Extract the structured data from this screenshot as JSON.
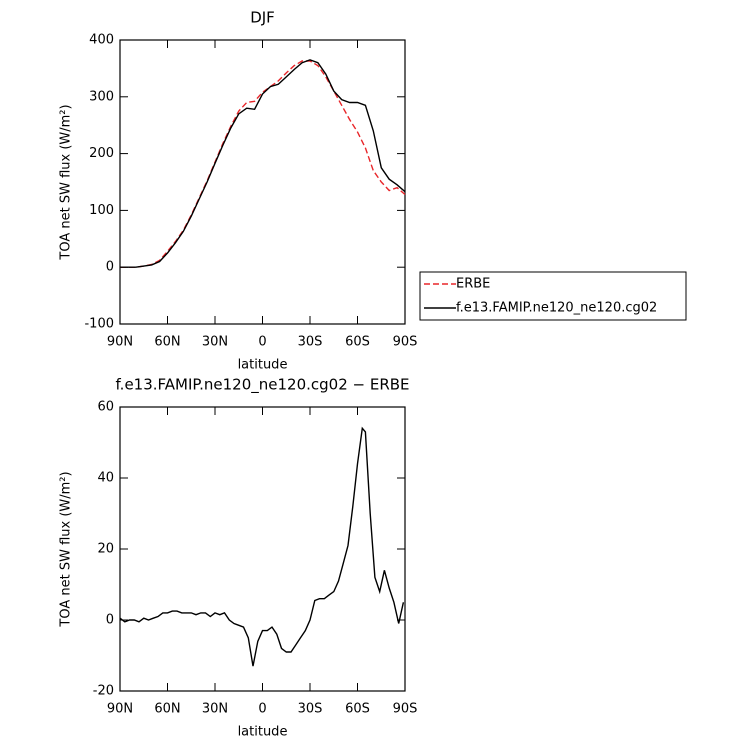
{
  "chart_data": [
    {
      "type": "line",
      "title": "DJF",
      "xlabel": "latitude",
      "ylabel": "TOA net SW flux (W/m²)",
      "x": [
        90,
        85,
        80,
        75,
        70,
        65,
        60,
        55,
        50,
        45,
        40,
        35,
        30,
        25,
        20,
        15,
        10,
        5,
        0,
        -5,
        -10,
        -15,
        -20,
        -25,
        -30,
        -35,
        -40,
        -45,
        -50,
        -55,
        -60,
        -65,
        -70,
        -75,
        -80,
        -85,
        -90
      ],
      "series": [
        {
          "name": "ERBE",
          "color": "#e8262a",
          "linestyle": "dashed",
          "values": [
            0,
            0,
            0,
            2,
            5,
            12,
            28,
            45,
            65,
            92,
            122,
            152,
            185,
            218,
            248,
            275,
            290,
            292,
            308,
            318,
            328,
            342,
            355,
            363,
            363,
            355,
            335,
            310,
            285,
            260,
            238,
            210,
            170,
            150,
            135,
            140,
            128
          ]
        },
        {
          "name": "f.e13.FAMIP.ne120_ne120.cg02",
          "color": "#000000",
          "linestyle": "solid",
          "values": [
            0,
            0,
            0,
            2,
            4,
            10,
            25,
            43,
            63,
            90,
            120,
            150,
            183,
            215,
            245,
            270,
            280,
            278,
            305,
            318,
            322,
            335,
            348,
            360,
            365,
            360,
            340,
            310,
            295,
            290,
            290,
            285,
            240,
            175,
            155,
            145,
            133
          ]
        }
      ],
      "xlim": [
        90,
        -90
      ],
      "xticks": [
        {
          "value": 90,
          "label": "90N"
        },
        {
          "value": 60,
          "label": "60N"
        },
        {
          "value": 30,
          "label": "30N"
        },
        0,
        {
          "value": -30,
          "label": "30S"
        },
        {
          "value": -60,
          "label": "60S"
        },
        {
          "value": -90,
          "label": "90S"
        }
      ],
      "ylim": [
        -100,
        400
      ],
      "yticks": [
        -100,
        0,
        100,
        200,
        300,
        400
      ],
      "legend": "right"
    },
    {
      "type": "line",
      "title": "f.e13.FAMIP.ne120_ne120.cg02 − ERBE",
      "xlabel": "latitude",
      "ylabel": "TOA net SW flux (W/m²)",
      "x": [
        90,
        87,
        84,
        81,
        78,
        75,
        72,
        69,
        66,
        63,
        60,
        57,
        54,
        51,
        48,
        45,
        42,
        39,
        36,
        33,
        30,
        27,
        24,
        21,
        18,
        15,
        12,
        9,
        6,
        3,
        0,
        -3,
        -6,
        -9,
        -12,
        -15,
        -18,
        -21,
        -24,
        -27,
        -30,
        -33,
        -36,
        -39,
        -42,
        -45,
        -48,
        -51,
        -54,
        -57,
        -60,
        -63,
        -65,
        -68,
        -71,
        -74,
        -77,
        -80,
        -83,
        -86,
        -89
      ],
      "values": [
        0.5,
        -0.5,
        0,
        0,
        -0.5,
        0.5,
        0,
        0.5,
        1,
        2,
        2,
        2.5,
        2.5,
        2,
        2,
        2,
        1.5,
        2,
        2,
        1,
        2,
        1.5,
        2,
        0,
        -1,
        -1.5,
        -2,
        -5,
        -13,
        -6,
        -3,
        -3,
        -2,
        -4,
        -8,
        -9,
        -9,
        -7,
        -5,
        -3,
        0,
        5.5,
        6,
        6,
        7,
        8,
        11,
        16,
        21,
        32,
        44,
        54,
        53,
        30,
        12,
        8,
        14,
        9,
        5,
        -1,
        5
      ],
      "color": "#000000",
      "xlim": [
        90,
        -90
      ],
      "xticks": [
        {
          "value": 90,
          "label": "90N"
        },
        {
          "value": 60,
          "label": "60N"
        },
        {
          "value": 30,
          "label": "30N"
        },
        0,
        {
          "value": -30,
          "label": "30S"
        },
        {
          "value": -60,
          "label": "60S"
        },
        {
          "value": -90,
          "label": "90S"
        }
      ],
      "ylim": [
        -20,
        60
      ],
      "yticks": [
        -20,
        0,
        20,
        40,
        60
      ]
    }
  ]
}
